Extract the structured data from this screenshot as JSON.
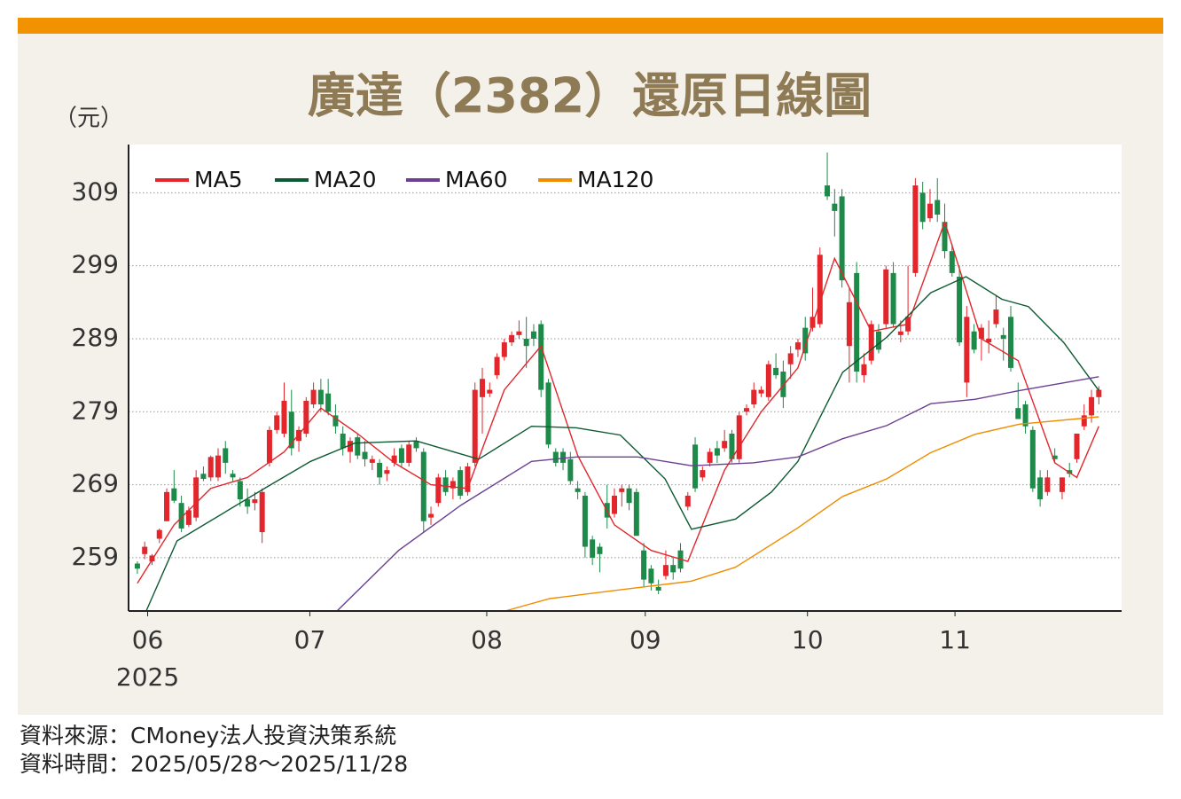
{
  "chart_data": {
    "type": "candlestick",
    "title": "廣達（2382）還原日線圖",
    "y_unit": "（元）",
    "year_label": "2025",
    "source": "資料來源：CMoney法人投資決策系統",
    "period": "資料時間：2025/05/28～2025/11/28",
    "up_color": "#e2262b",
    "down_color": "#1e8a4a",
    "ylim": [
      251.7,
      315.6
    ],
    "yticks": [
      259,
      269,
      279,
      289,
      299,
      309
    ],
    "grid": true,
    "xlim": [
      -1.2,
      134.1
    ],
    "xticks": [
      {
        "value": 1.4,
        "label": "06"
      },
      {
        "value": 23.5,
        "label": "07"
      },
      {
        "value": 47.6,
        "label": "08"
      },
      {
        "value": 69.2,
        "label": "09"
      },
      {
        "value": 91.3,
        "label": "10"
      },
      {
        "value": 111.4,
        "label": "11"
      }
    ],
    "x": [
      0,
      1,
      2,
      3,
      4,
      5,
      6,
      7,
      8,
      9,
      10,
      11,
      12,
      13,
      14,
      15,
      16,
      17,
      18,
      19,
      20,
      21,
      22,
      23,
      24,
      25,
      26,
      27,
      28,
      29,
      30,
      31,
      32,
      33,
      34,
      35,
      36,
      37,
      38,
      39,
      40,
      41,
      42,
      43,
      44,
      45,
      46,
      47,
      48,
      49,
      50,
      51,
      52,
      53,
      54,
      55,
      56,
      57,
      58,
      59,
      60,
      61,
      62,
      63,
      64,
      65,
      66,
      67,
      68,
      69,
      70,
      71,
      72,
      73,
      74,
      75,
      76,
      77,
      78,
      79,
      80,
      81,
      82,
      83,
      84,
      85,
      86,
      87,
      88,
      89,
      90,
      91,
      92,
      93,
      94,
      95,
      96,
      97,
      98,
      99,
      100,
      101,
      102,
      103,
      104,
      105,
      106,
      107,
      108,
      109,
      110,
      111,
      112,
      113,
      114,
      115,
      116,
      117,
      118,
      119,
      120,
      121,
      122,
      123,
      124,
      125,
      126,
      127,
      128,
      129,
      130,
      131
    ],
    "open": [
      258.2,
      259.5,
      258.5,
      261.6,
      264.0,
      268.5,
      266.5,
      263.5,
      264.5,
      270.5,
      270.0,
      270.0,
      274.0,
      270.5,
      269.5,
      267.0,
      266.5,
      262.5,
      272.0,
      276.5,
      276.0,
      279.0,
      275.0,
      276.0,
      280.0,
      282.0,
      281.5,
      278.5,
      276.0,
      273.5,
      275.5,
      273.5,
      272.0,
      272.0,
      270.5,
      272.0,
      274.0,
      272.0,
      275.0,
      273.5,
      264.5,
      266.5,
      270.0,
      268.5,
      271.0,
      268.0,
      272.0,
      281.0,
      281.5,
      284.0,
      286.5,
      288.5,
      289.5,
      289.0,
      290.0,
      291.0,
      283.0,
      273.5,
      273.5,
      272.5,
      268.5,
      267.5,
      261.5,
      260.5,
      266.5,
      265.0,
      268.0,
      268.5,
      268.0,
      260.0,
      257.5,
      255.0,
      256.5,
      258.0,
      260.0,
      266.0,
      274.5,
      270.0,
      272.0,
      274.0,
      274.0,
      276.0,
      272.5,
      279.0,
      280.0,
      281.5,
      281.0,
      285.0,
      284.5,
      285.5,
      287.5,
      290.5,
      290.5,
      291.0,
      310.0,
      307.5,
      308.5,
      288.0,
      298.0,
      284.0,
      286.0,
      290.0,
      291.0,
      298.0,
      289.5,
      290.0,
      298.0,
      309.0,
      305.5,
      308.0,
      305.0,
      301.0,
      297.5,
      283.0,
      290.0,
      289.0,
      288.5,
      291.0,
      289.5,
      292.0,
      279.5,
      280.0,
      276.5,
      270.0,
      268.0,
      273.0,
      268.0,
      271.0,
      272.5,
      277.0,
      278.5,
      281.0
    ],
    "high": [
      258.5,
      261.2,
      259.5,
      263.0,
      268.5,
      271.0,
      267.5,
      266.0,
      271.0,
      271.5,
      273.0,
      274.0,
      275.0,
      271.0,
      270.0,
      268.5,
      268.0,
      268.5,
      277.0,
      279.0,
      283.0,
      282.0,
      277.0,
      281.0,
      283.0,
      283.5,
      283.5,
      280.0,
      277.0,
      275.5,
      276.0,
      275.0,
      273.0,
      272.5,
      271.5,
      274.0,
      274.5,
      275.0,
      275.5,
      274.0,
      266.0,
      270.5,
      271.0,
      270.0,
      271.5,
      272.0,
      283.0,
      285.0,
      283.0,
      287.0,
      289.0,
      290.0,
      291.5,
      292.0,
      291.0,
      291.5,
      283.5,
      274.0,
      274.0,
      273.5,
      269.5,
      268.0,
      262.0,
      261.0,
      269.0,
      268.5,
      269.0,
      269.0,
      268.5,
      261.0,
      258.0,
      256.0,
      260.0,
      259.0,
      261.0,
      268.0,
      275.5,
      271.5,
      274.0,
      275.0,
      276.5,
      276.5,
      279.0,
      280.0,
      283.0,
      282.5,
      286.0,
      287.0,
      286.0,
      288.0,
      289.0,
      292.0,
      296.0,
      301.5,
      314.5,
      309.5,
      309.5,
      296.0,
      299.5,
      287.0,
      291.5,
      291.0,
      299.0,
      299.5,
      291.5,
      299.0,
      311.0,
      310.5,
      309.5,
      311.0,
      307.5,
      302.0,
      299.0,
      293.5,
      291.0,
      291.0,
      291.5,
      295.0,
      290.5,
      293.5,
      283.0,
      280.5,
      277.0,
      271.0,
      271.0,
      274.0,
      270.0,
      272.0,
      276.0,
      280.0,
      282.0,
      282.5
    ],
    "low": [
      256.8,
      258.8,
      258.0,
      261.0,
      264.0,
      266.5,
      262.5,
      263.2,
      264.0,
      269.5,
      269.5,
      269.5,
      270.5,
      269.5,
      266.0,
      265.0,
      265.5,
      261.0,
      271.5,
      276.0,
      275.5,
      273.0,
      273.5,
      275.5,
      279.5,
      279.0,
      278.5,
      276.0,
      273.0,
      272.0,
      272.5,
      271.5,
      271.0,
      269.0,
      269.5,
      271.5,
      271.5,
      271.5,
      273.5,
      262.5,
      263.5,
      266.0,
      267.5,
      267.0,
      267.0,
      267.5,
      271.5,
      276.0,
      281.0,
      283.5,
      286.0,
      288.0,
      289.0,
      285.0,
      288.0,
      281.0,
      274.0,
      271.5,
      271.0,
      269.0,
      267.0,
      259.0,
      258.0,
      257.0,
      263.0,
      264.5,
      266.0,
      265.5,
      262.0,
      255.0,
      254.5,
      254.0,
      256.0,
      256.0,
      257.0,
      265.5,
      268.0,
      269.5,
      271.5,
      272.0,
      273.5,
      272.0,
      272.0,
      278.5,
      279.5,
      281.0,
      280.5,
      283.5,
      279.5,
      283.5,
      286.5,
      286.0,
      290.0,
      290.5,
      308.0,
      303.0,
      296.0,
      283.0,
      283.0,
      283.0,
      285.5,
      287.0,
      290.5,
      290.5,
      288.5,
      289.5,
      297.5,
      304.0,
      305.0,
      305.0,
      300.0,
      297.5,
      288.0,
      281.0,
      287.0,
      286.0,
      287.0,
      290.5,
      286.0,
      284.5,
      278.0,
      276.0,
      268.0,
      266.0,
      267.5,
      272.0,
      267.0,
      270.0,
      272.0,
      276.5,
      277.5,
      280.0
    ],
    "close": [
      257.5,
      260.5,
      259.3,
      262.8,
      268.0,
      266.8,
      263.0,
      265.5,
      270.0,
      269.8,
      272.8,
      273.0,
      272.0,
      270.0,
      267.0,
      266.0,
      267.0,
      268.0,
      276.5,
      278.5,
      280.5,
      274.0,
      276.5,
      280.5,
      282.0,
      280.0,
      279.0,
      277.0,
      274.0,
      275.0,
      273.0,
      272.5,
      272.5,
      270.0,
      271.0,
      273.0,
      272.0,
      274.5,
      274.0,
      264.0,
      265.0,
      270.0,
      268.0,
      269.5,
      267.5,
      271.5,
      282.0,
      283.5,
      282.0,
      286.5,
      288.5,
      289.5,
      290.0,
      288.0,
      289.0,
      282.0,
      274.5,
      272.0,
      272.0,
      269.5,
      268.0,
      260.5,
      259.0,
      259.5,
      264.5,
      267.5,
      268.5,
      266.5,
      262.0,
      256.0,
      255.5,
      254.5,
      258.0,
      257.0,
      257.5,
      267.5,
      268.5,
      271.0,
      273.5,
      273.0,
      275.0,
      272.5,
      278.5,
      279.5,
      282.0,
      282.0,
      285.5,
      284.0,
      281.0,
      287.0,
      288.5,
      287.0,
      292.0,
      300.5,
      308.5,
      306.5,
      297.0,
      294.0,
      284.5,
      285.5,
      291.0,
      287.5,
      298.5,
      291.0,
      290.0,
      292.0,
      310.0,
      305.0,
      307.5,
      306.0,
      301.0,
      298.0,
      288.5,
      292.0,
      287.5,
      290.5,
      289.0,
      293.0,
      289.0,
      285.0,
      278.0,
      277.0,
      268.5,
      267.0,
      270.0,
      272.5,
      270.0,
      270.5,
      276.0,
      278.5,
      281.0,
      282.0
    ],
    "lines": [
      {
        "name": "MA5",
        "color": "#e2262b",
        "x": [
          0,
          5,
          10,
          15,
          20,
          25,
          30,
          35,
          40,
          45,
          50,
          55,
          60,
          65,
          70,
          75,
          80,
          85,
          90,
          95,
          100,
          105,
          110,
          115,
          120,
          125,
          128,
          131
        ],
        "values": [
          255.5,
          263.5,
          268.5,
          270,
          273.5,
          279.5,
          276,
          272,
          269,
          268.5,
          282,
          288,
          273,
          263.5,
          260,
          258.5,
          271,
          279,
          285,
          300,
          290,
          291,
          305,
          289,
          286,
          272,
          270,
          277
        ]
      },
      {
        "name": "MA20",
        "color": "#0d5a32",
        "x": [
          1.2,
          5.4,
          17.5,
          23.6,
          29.6,
          38.0,
          46.5,
          53.7,
          59.8,
          65.8,
          71.9,
          75.5,
          81.5,
          86.4,
          90.0,
          96.1,
          102.1,
          108.1,
          112.9,
          117.8,
          121.4,
          126.2,
          131
        ],
        "values": [
          251.7,
          261.3,
          268.6,
          272.2,
          274.7,
          275,
          272.5,
          277,
          276.8,
          275.8,
          269.8,
          262.9,
          264.3,
          268,
          272.2,
          284.4,
          289.2,
          295.3,
          297.5,
          294.4,
          293.4,
          288.5,
          281.9
        ]
      },
      {
        "name": "MA60",
        "color": "#6b3f92",
        "x": [
          27.2,
          35.6,
          44.1,
          53.7,
          59.8,
          68.2,
          75.5,
          83.9,
          90,
          96.1,
          102.1,
          108.1,
          114.1,
          120.2,
          131
        ],
        "values": [
          251.7,
          260,
          266.2,
          272.2,
          272.8,
          272.8,
          271.6,
          272,
          272.8,
          275.3,
          277.1,
          280.1,
          280.7,
          281.9,
          283.8
        ]
      },
      {
        "name": "MA120",
        "color": "#f08c00",
        "x": [
          50.1,
          56.2,
          65.8,
          75.5,
          81.5,
          90,
          96.1,
          102.1,
          108.1,
          114.1,
          120.2,
          131
        ],
        "values": [
          251.7,
          253.4,
          254.6,
          255.8,
          257.7,
          263.1,
          267.4,
          269.8,
          273.4,
          275.9,
          277.3,
          278.3
        ]
      }
    ]
  }
}
